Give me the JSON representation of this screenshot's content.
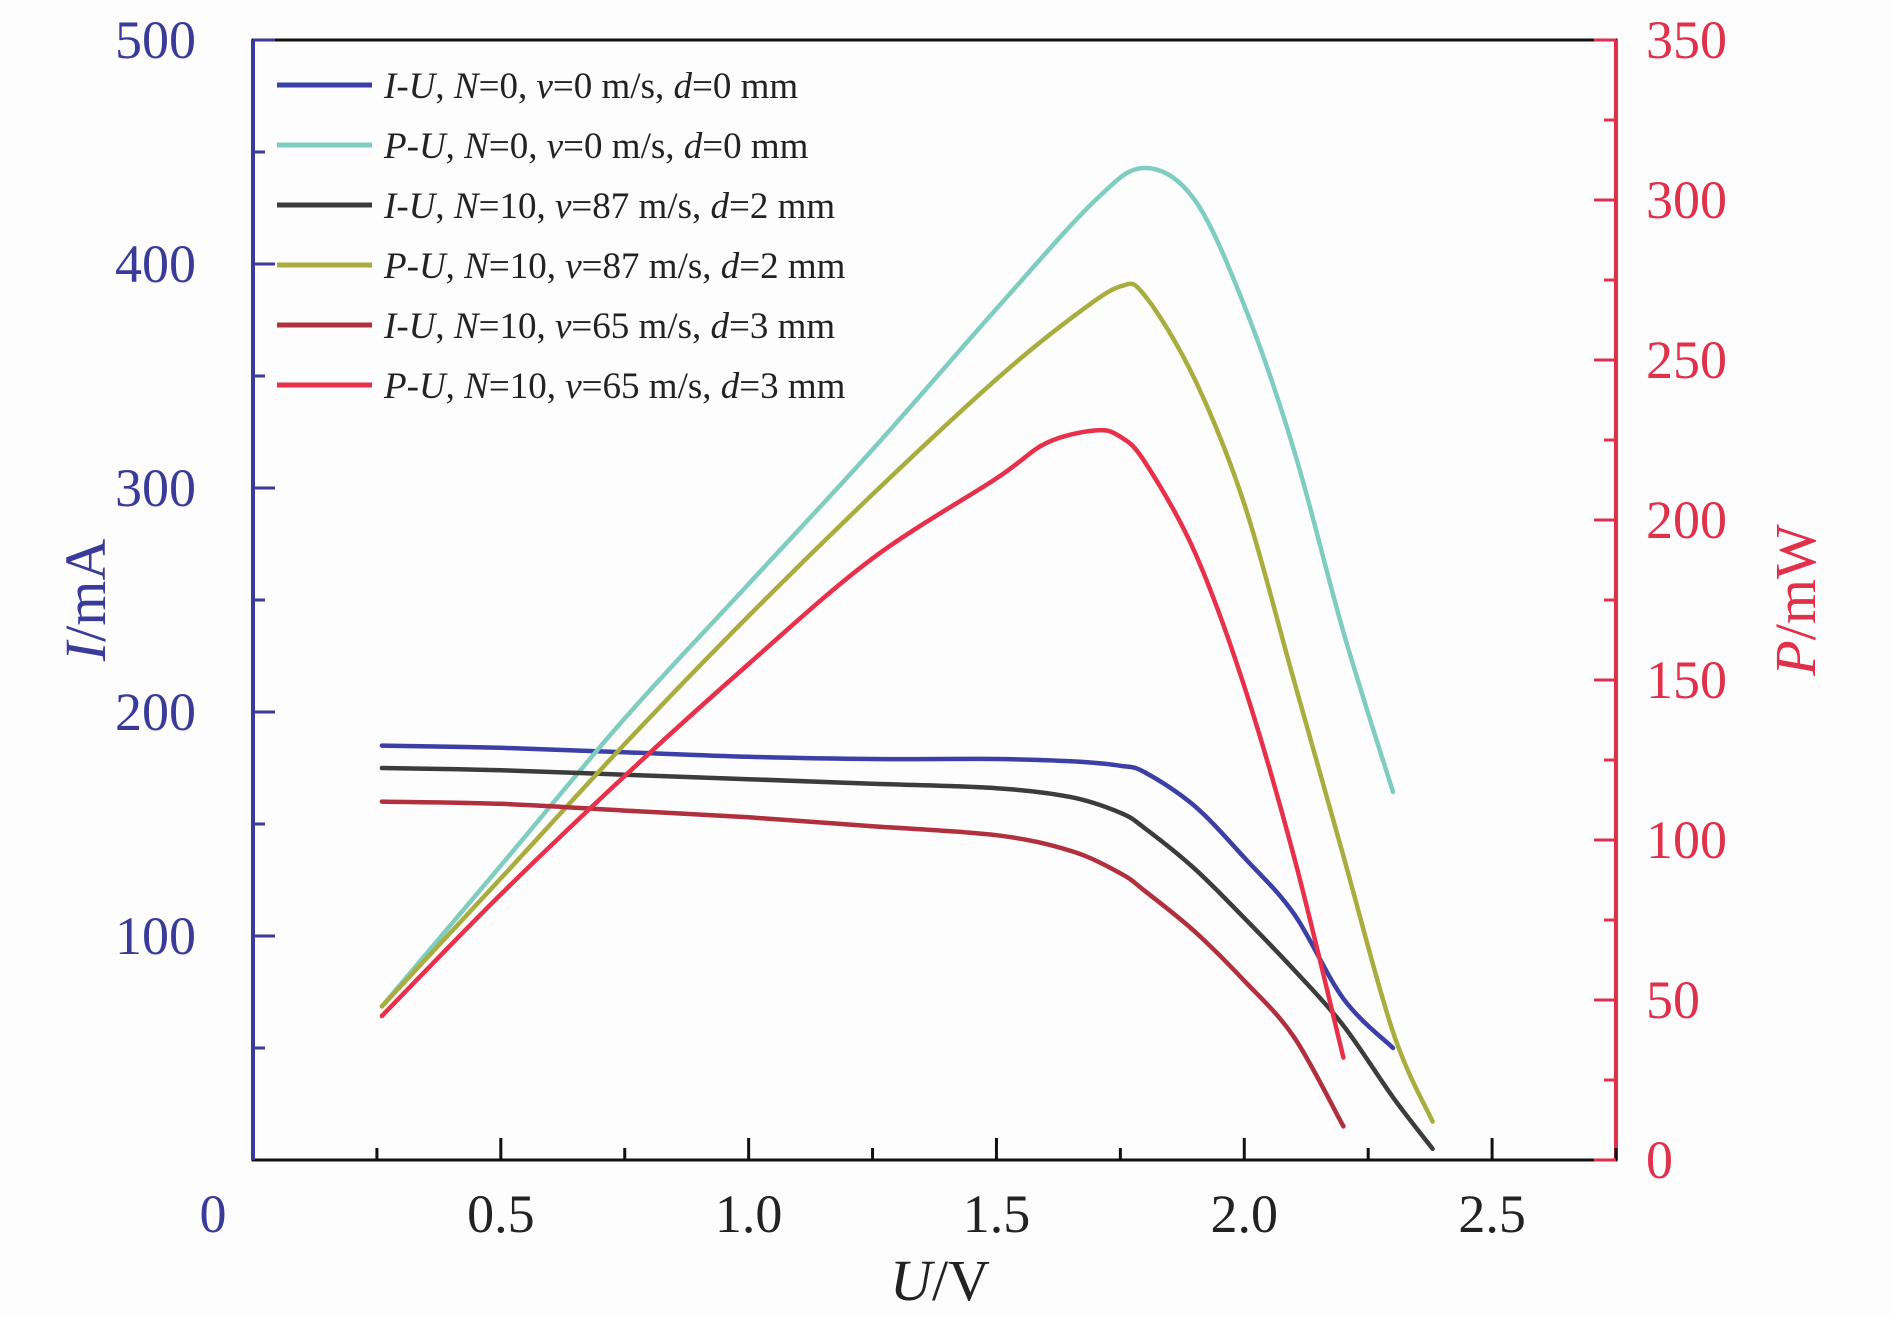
{
  "chart_data": {
    "type": "line",
    "xlabel": "U/V",
    "ylabel_left": "I/mA",
    "ylabel_right": "P/mW",
    "xlim": [
      0,
      2.75
    ],
    "ylim_left": [
      0,
      500
    ],
    "ylim_right": [
      0,
      350
    ],
    "x_ticks": [
      "0.5",
      "1.0",
      "1.5",
      "2.0",
      "2.5"
    ],
    "x_tick_values": [
      0.5,
      1.0,
      1.5,
      2.0,
      2.5
    ],
    "y_left_ticks": [
      "0",
      "100",
      "200",
      "300",
      "400",
      "500"
    ],
    "y_left_tick_values": [
      0,
      100,
      200,
      300,
      400,
      500
    ],
    "y_right_ticks": [
      "0",
      "50",
      "100",
      "150",
      "200",
      "250",
      "300",
      "350"
    ],
    "y_right_tick_values": [
      0,
      50,
      100,
      150,
      200,
      250,
      300,
      350
    ],
    "grid": false,
    "legend_position": "top-left",
    "colors": {
      "left_axis": "#3a3a9a",
      "right_axis": "#e0304a",
      "frame": "#111111"
    },
    "series": [
      {
        "name": "I-U, N=0, v=0 m/s, d=0 mm",
        "axis": "left",
        "color": "#3b3fa6",
        "x": [
          0.26,
          0.5,
          0.75,
          1.0,
          1.25,
          1.5,
          1.65,
          1.75,
          1.8,
          1.9,
          2.0,
          2.1,
          2.2,
          2.3
        ],
        "y": [
          185,
          184,
          182,
          180,
          179,
          179,
          178,
          176,
          173,
          158,
          135,
          110,
          72,
          50
        ]
      },
      {
        "name": "P-U, N=0, v=0 m/s, d=0 mm",
        "axis": "right",
        "color": "#7fcdc0",
        "x": [
          0.26,
          0.5,
          0.75,
          1.0,
          1.25,
          1.5,
          1.7,
          1.8,
          1.9,
          2.0,
          2.1,
          2.2,
          2.3
        ],
        "y": [
          48,
          92,
          138,
          180,
          222,
          266,
          300,
          310,
          300,
          267,
          222,
          165,
          115
        ]
      },
      {
        "name": "I-U, N=10, v=87 m/s, d=2 mm",
        "axis": "left",
        "color": "#3c3c3c",
        "x": [
          0.26,
          0.5,
          0.75,
          1.0,
          1.25,
          1.5,
          1.65,
          1.75,
          1.8,
          1.9,
          2.0,
          2.1,
          2.2,
          2.3,
          2.38
        ],
        "y": [
          175,
          174,
          172,
          170,
          168,
          166,
          162,
          155,
          148,
          130,
          108,
          85,
          60,
          28,
          5
        ]
      },
      {
        "name": "P-U, N=10, v=87 m/s, d=2 mm",
        "axis": "right",
        "color": "#a8ad3e",
        "x": [
          0.26,
          0.5,
          0.75,
          1.0,
          1.25,
          1.5,
          1.65,
          1.75,
          1.8,
          1.9,
          2.0,
          2.1,
          2.2,
          2.3,
          2.38
        ],
        "y": [
          48,
          88,
          130,
          170,
          208,
          244,
          263,
          273,
          270,
          244,
          205,
          150,
          95,
          40,
          12
        ]
      },
      {
        "name": "I-U, N=10, v=65 m/s, d=3 mm",
        "axis": "left",
        "color": "#b0303e",
        "x": [
          0.26,
          0.5,
          0.75,
          1.0,
          1.25,
          1.5,
          1.65,
          1.75,
          1.8,
          1.9,
          2.0,
          2.1,
          2.2
        ],
        "y": [
          160,
          159,
          156,
          153,
          149,
          145,
          138,
          128,
          120,
          102,
          80,
          55,
          15
        ]
      },
      {
        "name": "P-U, N=10, v=65 m/s, d=3 mm",
        "axis": "right",
        "color": "#e8304a",
        "x": [
          0.26,
          0.5,
          0.75,
          1.0,
          1.25,
          1.5,
          1.6,
          1.7,
          1.75,
          1.8,
          1.9,
          2.0,
          2.1,
          2.2
        ],
        "y": [
          45,
          83,
          120,
          155,
          188,
          213,
          224,
          228,
          226,
          218,
          190,
          148,
          95,
          32
        ]
      }
    ],
    "legend_entries": [
      {
        "prefix": "I",
        "sep": "-",
        "var": "U",
        "n": "0",
        "v": "0",
        "d": "0"
      },
      {
        "prefix": "P",
        "sep": "-",
        "var": "U",
        "n": "0",
        "v": "0",
        "d": "0"
      },
      {
        "prefix": "I",
        "sep": "-",
        "var": "U",
        "n": "10",
        "v": "87",
        "d": "2"
      },
      {
        "prefix": "P",
        "sep": "-",
        "var": "U",
        "n": "10",
        "v": "87",
        "d": "2"
      },
      {
        "prefix": "I",
        "sep": "-",
        "var": "U",
        "n": "10",
        "v": "65",
        "d": "3"
      },
      {
        "prefix": "P",
        "sep": "-",
        "var": "U",
        "n": "10",
        "v": "65",
        "d": "3"
      }
    ]
  }
}
